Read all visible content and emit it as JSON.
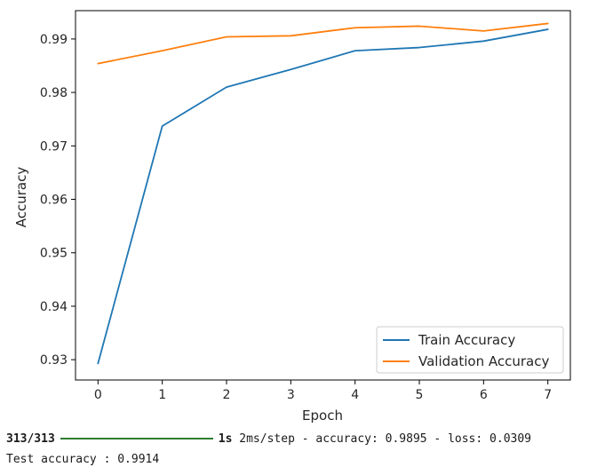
{
  "chart_data": {
    "type": "line",
    "title": "",
    "xlabel": "Epoch",
    "ylabel": "Accuracy",
    "x": [
      0,
      1,
      2,
      3,
      4,
      5,
      6,
      7
    ],
    "xticks": [
      "0",
      "1",
      "2",
      "3",
      "4",
      "5",
      "6",
      "7"
    ],
    "xlim": [
      -0.35,
      7.35
    ],
    "yticks": [
      "0.93",
      "0.94",
      "0.95",
      "0.96",
      "0.97",
      "0.98",
      "0.99"
    ],
    "ytick_values": [
      0.93,
      0.94,
      0.95,
      0.96,
      0.97,
      0.98,
      0.99
    ],
    "ylim": [
      0.9262,
      0.9953
    ],
    "grid": false,
    "legend_position": "lower-right",
    "series": [
      {
        "name": "Train Accuracy",
        "color": "#1f77b4",
        "values": [
          0.9293,
          0.9737,
          0.981,
          0.9843,
          0.9878,
          0.9884,
          0.9896,
          0.9918
        ]
      },
      {
        "name": "Validation Accuracy",
        "color": "#ff7f0e",
        "values": [
          0.9854,
          0.9878,
          0.9904,
          0.9906,
          0.9921,
          0.9924,
          0.9915,
          0.9929
        ]
      }
    ]
  },
  "console": {
    "steps": "313/313",
    "elapsed": "1s",
    "summary": "2ms/step - accuracy: 0.9895 - loss: 0.0309",
    "test_result": "Test accuracy : 0.9914"
  }
}
